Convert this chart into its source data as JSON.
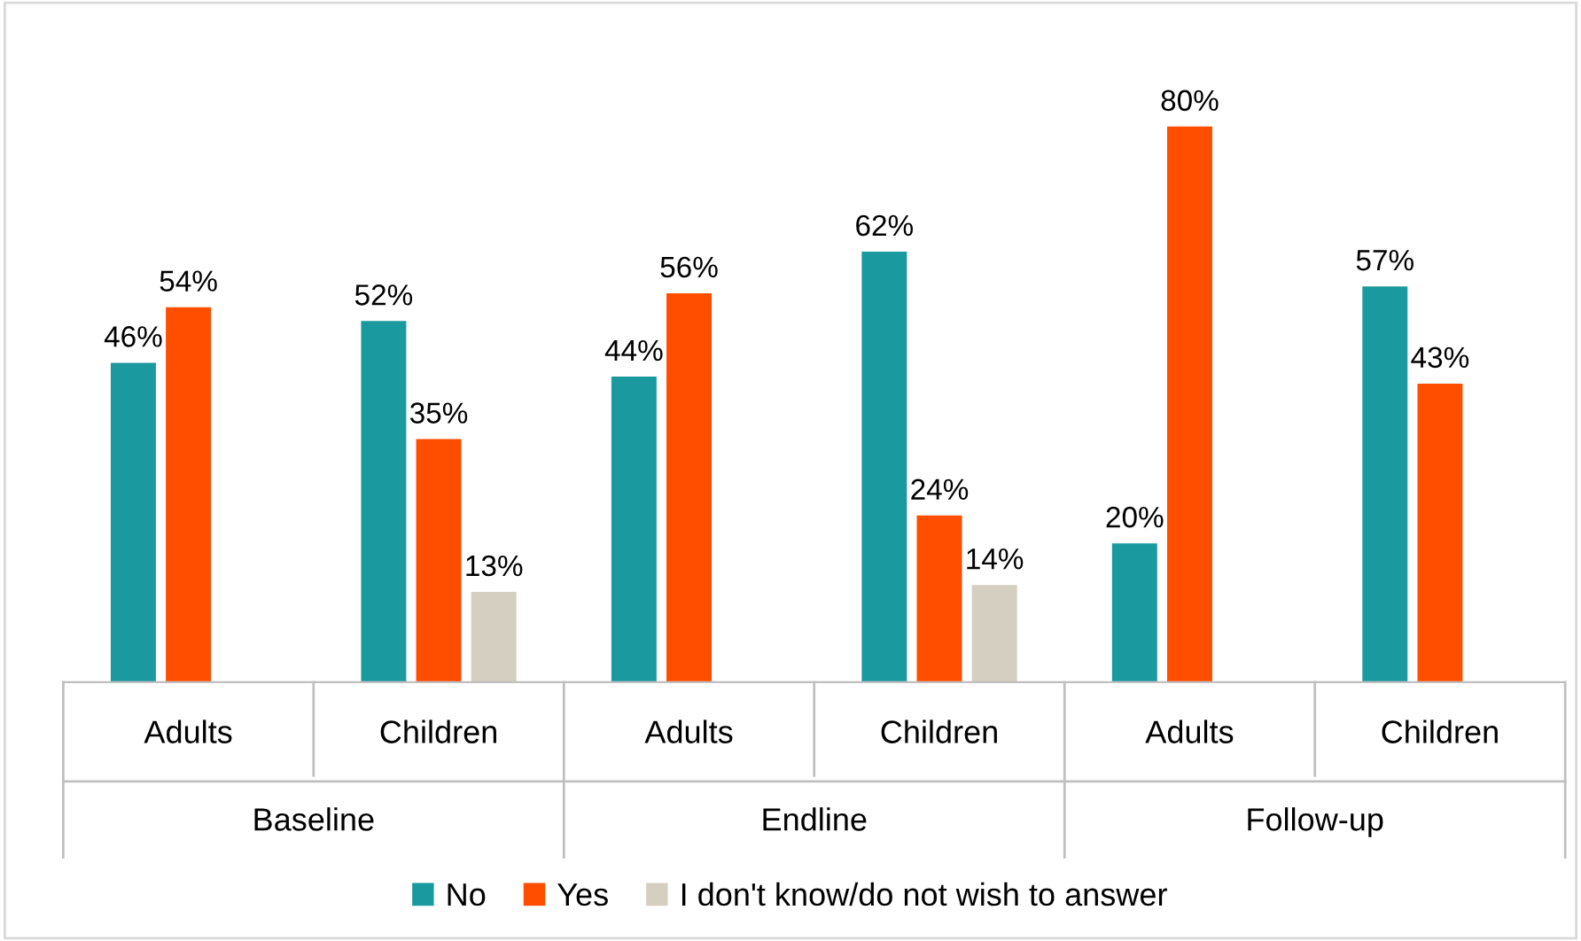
{
  "chart_data": {
    "type": "bar",
    "categories": [
      "Adults",
      "Children",
      "Adults",
      "Children",
      "Adults",
      "Children"
    ],
    "series": [
      {
        "name": "No",
        "color": "#1a9a9f",
        "values": [
          46,
          52,
          44,
          62,
          20,
          57
        ],
        "value_labels": [
          "46%",
          "52%",
          "44%",
          "62%",
          "20%",
          "57%"
        ]
      },
      {
        "name": "Yes",
        "color": "#ff4e00",
        "values": [
          54,
          35,
          56,
          24,
          80,
          43
        ],
        "value_labels": [
          "54%",
          "35%",
          "56%",
          "24%",
          "80%",
          "43%"
        ]
      },
      {
        "name": "I don't know/do not wish to answer",
        "color": "#d5cfc1",
        "values": [
          null,
          13,
          null,
          14,
          null,
          null
        ],
        "value_labels": [
          null,
          "13%",
          null,
          "14%",
          null,
          null
        ]
      }
    ],
    "annotations": [
      "Baseline",
      "Endline",
      "Follow-up"
    ],
    "legend": "bottom"
  }
}
